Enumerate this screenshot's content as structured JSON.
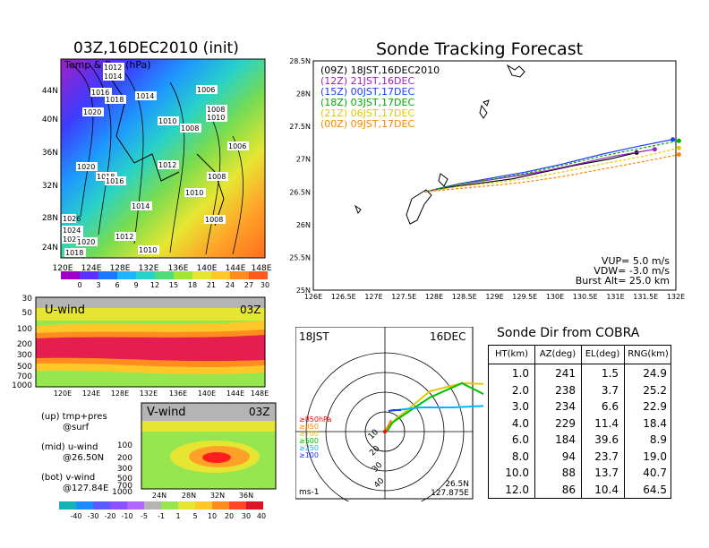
{
  "left_panel": {
    "title": "03Z,16DEC2010 (init)",
    "map_label": "Temp & Pres(hPa)",
    "lat_labels": [
      "44N",
      "40N",
      "36N",
      "32N",
      "28N",
      "24N"
    ],
    "lon_labels": [
      "120E",
      "124E",
      "128E",
      "132E",
      "136E",
      "140E",
      "144E",
      "148E"
    ],
    "pressure_labels": [
      "1012",
      "1014",
      "1016",
      "1018",
      "1020",
      "1014",
      "1010",
      "1006",
      "1008",
      "1010",
      "1008",
      "1006",
      "1020",
      "1012",
      "1008",
      "1018",
      "1016",
      "1010",
      "1014",
      "1012",
      "1008",
      "1010",
      "1024",
      "1022",
      "1020",
      "1018",
      "1026"
    ],
    "colorbar_ticks": [
      "0",
      "3",
      "6",
      "9",
      "12",
      "15",
      "18",
      "21",
      "24",
      "27",
      "30"
    ]
  },
  "uwind_panel": {
    "label": "U-wind",
    "time": "03Z",
    "y_ticks": [
      "30",
      "50",
      "100",
      "200",
      "300",
      "500",
      "700",
      "1000"
    ],
    "x_ticks": [
      "120E",
      "124E",
      "128E",
      "132E",
      "136E",
      "140E",
      "144E",
      "148E"
    ]
  },
  "vwind_panel": {
    "label": "V-wind",
    "time": "03Z",
    "y_ticks": [
      "100",
      "200",
      "300",
      "500",
      "700",
      "1000"
    ],
    "x_ticks": [
      "24N",
      "28N",
      "32N",
      "36N"
    ],
    "colorbar_ticks": [
      "-40",
      "-30",
      "-20",
      "-10",
      "-5",
      "-1",
      "1",
      "5",
      "10",
      "20",
      "30",
      "40"
    ]
  },
  "notes": {
    "line1": "(up) tmp+pres",
    "line2": "@surf",
    "line3": "(mid) u-wind",
    "line4": "@26.50N",
    "line5": "(bot) v-wind",
    "line6": "@127.84E"
  },
  "track_panel": {
    "title": "Sonde Tracking Forecast",
    "legend": [
      {
        "label": "(09Z)  18JST,16DEC2010",
        "color": "#000000"
      },
      {
        "label": "(12Z)  21JST,16DEC",
        "color": "#a020c0"
      },
      {
        "label": "(15Z)  00JST,17DEC",
        "color": "#1e3cff"
      },
      {
        "label": "(18Z)  03JST,17DEC",
        "color": "#00aa00"
      },
      {
        "label": "(21Z)  06JST,17DEC",
        "color": "#e6c800"
      },
      {
        "label": "(00Z)  09JST,17DEC",
        "color": "#ff8200"
      }
    ],
    "params": {
      "vup": "VUP=  5.0  m/s",
      "vdw": "VDW= -3.0  m/s",
      "burst": "Burst Alt=  25.0  km"
    }
  },
  "chart_data": [
    {
      "type": "line",
      "title": "Sonde Tracking Forecast",
      "xlim": [
        126,
        132
      ],
      "ylim": [
        25,
        28.5
      ],
      "x_ticks": [
        "126E",
        "126.5E",
        "127E",
        "127.5E",
        "128E",
        "128.5E",
        "129E",
        "129.5E",
        "130E",
        "130.5E",
        "131E",
        "131.5E",
        "132E"
      ],
      "y_ticks": [
        "25N",
        "25.5N",
        "26N",
        "26.5N",
        "27N",
        "27.5N",
        "28N",
        "28.5N"
      ],
      "series": [
        {
          "name": "(09Z)  18JST,16DEC2010",
          "color": "#000000",
          "x": [
            127.84,
            128.3,
            128.9,
            129.3,
            129.7,
            130.3,
            130.9,
            131.35
          ],
          "y": [
            26.5,
            26.58,
            26.65,
            26.7,
            26.78,
            26.9,
            27.0,
            27.1
          ]
        },
        {
          "name": "(12Z)  21JST,16DEC",
          "color": "#a020c0",
          "x": [
            127.84,
            128.3,
            128.9,
            129.4,
            129.9,
            130.5,
            131.0,
            131.65
          ],
          "y": [
            26.5,
            26.6,
            26.68,
            26.75,
            26.83,
            26.95,
            27.05,
            27.15
          ]
        },
        {
          "name": "(15Z)  00JST,17DEC",
          "color": "#1e3cff",
          "x": [
            127.84,
            128.4,
            129.0,
            129.5,
            130.1,
            130.8,
            131.4,
            131.95
          ],
          "y": [
            26.5,
            26.62,
            26.72,
            26.8,
            26.92,
            27.08,
            27.2,
            27.3
          ]
        },
        {
          "name": "(18Z)  03JST,17DEC",
          "color": "#00aa00",
          "x": [
            127.84,
            128.4,
            129.0,
            129.5,
            130.1,
            130.8,
            131.5,
            132.05
          ],
          "y": [
            26.5,
            26.62,
            26.7,
            26.78,
            26.9,
            27.05,
            27.18,
            27.28
          ]
        },
        {
          "name": "(21Z)  06JST,17DEC",
          "color": "#e6c800",
          "x": [
            127.84,
            128.4,
            129.0,
            129.5,
            130.1,
            130.8,
            131.5,
            132.05
          ],
          "y": [
            26.5,
            26.58,
            26.64,
            26.7,
            26.8,
            26.93,
            27.05,
            27.17
          ]
        },
        {
          "name": "(00Z)  09JST,17DEC",
          "color": "#ff8200",
          "x": [
            127.84,
            128.4,
            129.0,
            129.5,
            130.1,
            130.8,
            131.5,
            132.05
          ],
          "y": [
            26.5,
            26.55,
            26.6,
            26.65,
            26.73,
            26.85,
            26.97,
            27.07
          ]
        }
      ]
    },
    {
      "type": "table",
      "title": "Sonde Dir from COBRA",
      "columns": [
        "HT(km)",
        "AZ(deg)",
        "EL(deg)",
        "RNG(km)"
      ],
      "rows": [
        [
          "1.0",
          "241",
          "1.5",
          "24.9"
        ],
        [
          "2.0",
          "238",
          "3.7",
          "25.2"
        ],
        [
          "3.0",
          "234",
          "6.6",
          "22.9"
        ],
        [
          "4.0",
          "229",
          "11.4",
          "18.4"
        ],
        [
          "6.0",
          "184",
          "39.6",
          "8.9"
        ],
        [
          "8.0",
          "94",
          "23.7",
          "19.0"
        ],
        [
          "10.0",
          "88",
          "13.7",
          "40.7"
        ],
        [
          "12.0",
          "86",
          "10.4",
          "64.5"
        ]
      ]
    }
  ],
  "polar_panel": {
    "time": "18JST",
    "date": "16DEC",
    "levels": [
      "≥850hPa",
      "≥850",
      "≥700",
      "≥500",
      "≥250",
      "≥100"
    ],
    "level_colors": [
      "#ff0000",
      "#ff8200",
      "#e6c800",
      "#00c000",
      "#00b4ff",
      "#1e3cff"
    ],
    "ring_labels": [
      "10",
      "20",
      "30",
      "40"
    ],
    "unit": "ms-1",
    "loc_lat": "26.5N",
    "loc_lon": "127.875E"
  },
  "table_title": "Sonde Dir from COBRA"
}
